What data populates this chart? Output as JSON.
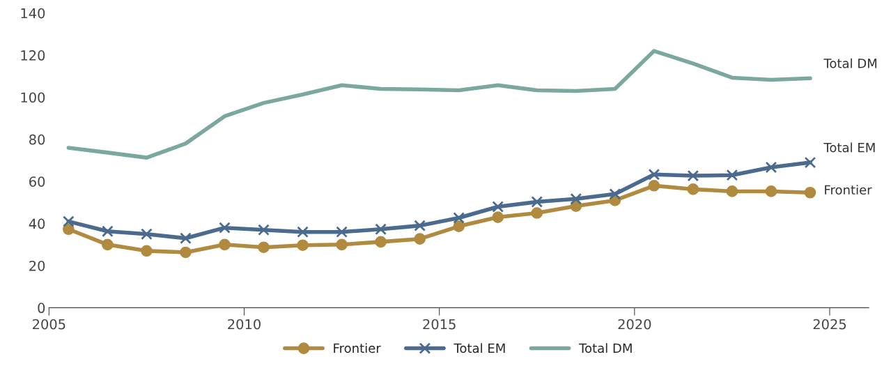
{
  "chart_data": {
    "type": "line",
    "x": [
      2005.5,
      2006.5,
      2007.5,
      2008.5,
      2009.5,
      2010.5,
      2011.5,
      2012.5,
      2013.5,
      2014.5,
      2015.5,
      2016.5,
      2017.5,
      2018.5,
      2019.5,
      2020.5,
      2021.5,
      2022.5,
      2023.5,
      2024.5
    ],
    "series": [
      {
        "name": "Frontier",
        "color": "#b08a3e",
        "marker": "circle",
        "values": [
          37.3,
          30,
          27,
          26.3,
          30,
          28.7,
          29.7,
          30,
          31.3,
          32.7,
          38.7,
          43,
          45,
          48.3,
          51,
          58,
          56.3,
          55.3,
          55.3,
          54.7
        ]
      },
      {
        "name": "Total EM",
        "color": "#4a6a8e",
        "marker": "cross",
        "values": [
          41,
          36.3,
          35,
          33,
          38,
          37,
          36,
          36,
          37.3,
          39,
          42.7,
          48,
          50.3,
          51.7,
          54,
          63.3,
          62.7,
          63,
          66.7,
          69
        ]
      },
      {
        "name": "Total DM",
        "color": "#7aa8a0",
        "marker": "none",
        "values": [
          76,
          73.7,
          71.3,
          78,
          91,
          97.3,
          101.3,
          105.7,
          104,
          103.7,
          103.3,
          105.7,
          103.3,
          103,
          104,
          122,
          116,
          109.3,
          108.3,
          109
        ]
      }
    ],
    "xlim": [
      2005,
      2026
    ],
    "xticks": [
      2005,
      2010,
      2015,
      2020,
      2025
    ],
    "ylim": [
      0,
      140
    ],
    "yticks": [
      0,
      20,
      40,
      60,
      80,
      100,
      120,
      140
    ],
    "grid": false,
    "legend": "bottom"
  }
}
